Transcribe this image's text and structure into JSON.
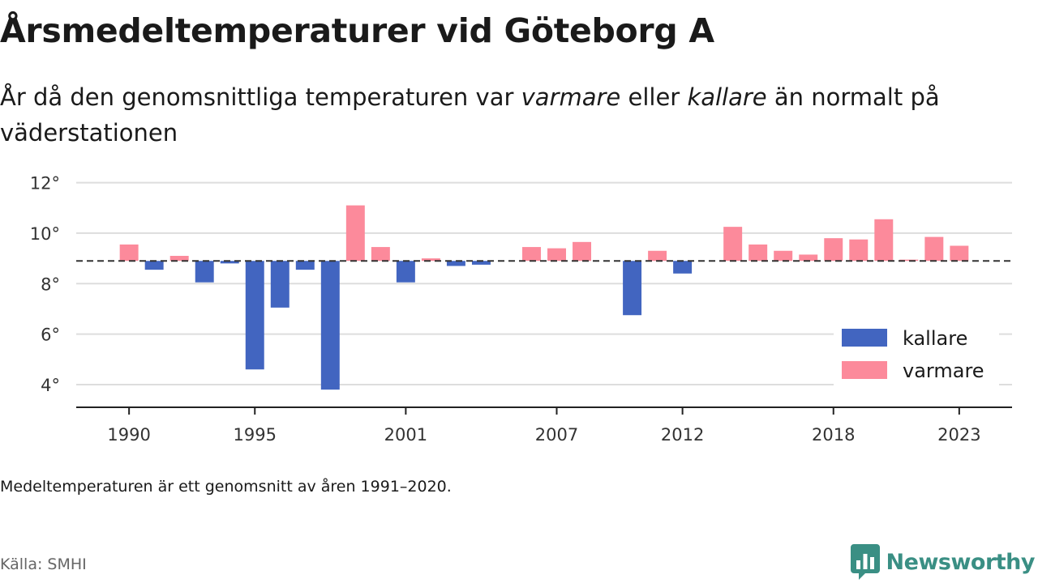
{
  "header": {
    "title": "Årsmedeltemperaturer vid Göteborg A",
    "subtitle_pre": "År då den genomsnittliga temperaturen var ",
    "subtitle_em1": "varmare",
    "subtitle_mid": " eller ",
    "subtitle_em2": "kallare",
    "subtitle_post": " än normalt på väderstationen"
  },
  "footer": {
    "note": "Medeltemperaturen är ett genomsnitt av åren 1991–2020.",
    "source": "Källa: SMHI",
    "brand_name": "Newsworthy",
    "brand_icon": "newsworthy-logo-icon"
  },
  "colors": {
    "kallare": "#4265c0",
    "varmare": "#fc8a9b",
    "brand": "#3a8f84",
    "grid": "#dddddd",
    "axis": "#222222",
    "reference": "#333333"
  },
  "chart_data": {
    "type": "bar",
    "title": "Årsmedeltemperaturer vid Göteborg A",
    "xlabel": "",
    "ylabel": "",
    "baseline": 8.9,
    "ylim": [
      3.1,
      12.5
    ],
    "yticks": [
      4,
      6,
      8,
      10,
      12
    ],
    "ytick_labels": [
      "4°",
      "6°",
      "8°",
      "10°",
      "12°"
    ],
    "xlim": [
      1987.9,
      2025.1
    ],
    "xticks": [
      1990,
      1995,
      2001,
      2007,
      2012,
      2018,
      2023
    ],
    "xtick_labels": [
      "1990",
      "1995",
      "2001",
      "2007",
      "2012",
      "2018",
      "2023"
    ],
    "grid": true,
    "legend_position": "bottom-right",
    "legend": [
      {
        "key": "kallare",
        "label": "kallare"
      },
      {
        "key": "varmare",
        "label": "varmare"
      }
    ],
    "x": [
      1990,
      1991,
      1992,
      1993,
      1994,
      1995,
      1996,
      1997,
      1998,
      1999,
      2000,
      2001,
      2002,
      2003,
      2004,
      2005,
      2006,
      2007,
      2008,
      2009,
      2010,
      2011,
      2012,
      2013,
      2014,
      2015,
      2016,
      2017,
      2018,
      2019,
      2020,
      2021,
      2022,
      2023
    ],
    "values": [
      9.55,
      8.55,
      9.1,
      8.05,
      8.8,
      4.6,
      7.05,
      8.55,
      3.8,
      11.1,
      9.45,
      8.05,
      9.0,
      8.7,
      8.75,
      null,
      9.45,
      9.4,
      9.65,
      null,
      6.75,
      9.3,
      8.4,
      null,
      10.25,
      9.55,
      9.3,
      9.15,
      9.8,
      9.75,
      10.55,
      8.95,
      9.85,
      9.5
    ]
  }
}
